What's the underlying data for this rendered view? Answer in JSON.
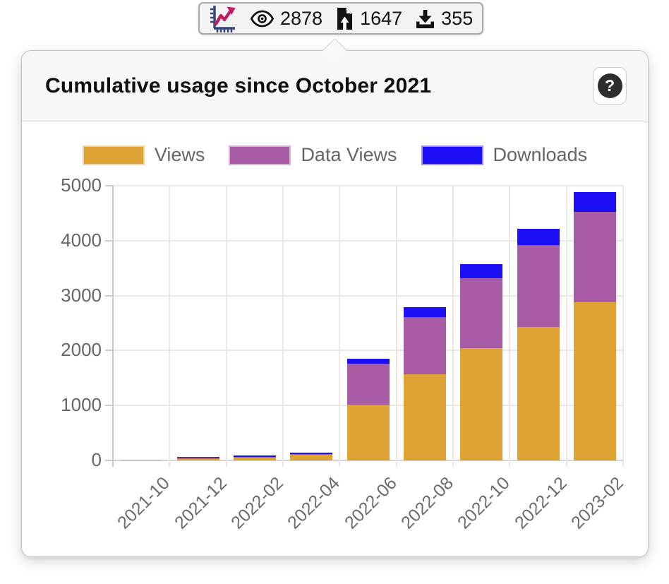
{
  "toolbar": {
    "metrics": [
      {
        "name": "views",
        "icon": "eye-icon",
        "value": "2878"
      },
      {
        "name": "data-views",
        "icon": "file-upload-icon",
        "value": "1647"
      },
      {
        "name": "downloads",
        "icon": "download-icon",
        "value": "355"
      }
    ]
  },
  "popup": {
    "title": "Cumulative usage since October 2021",
    "help_label": "?"
  },
  "chart_data": {
    "type": "bar",
    "stacked": true,
    "title": "Cumulative usage since October 2021",
    "categories": [
      "2021-10",
      "2021-12",
      "2022-02",
      "2022-04",
      "2022-06",
      "2022-08",
      "2022-10",
      "2022-12",
      "2023-02"
    ],
    "series": [
      {
        "name": "Views",
        "color": "#DFA335",
        "values": [
          18,
          30,
          50,
          98,
          1010,
          1565,
          2040,
          2425,
          2878
        ]
      },
      {
        "name": "Data Views",
        "color": "#A85CA6",
        "values": [
          0,
          6,
          8,
          18,
          745,
          1050,
          1280,
          1500,
          1647
        ]
      },
      {
        "name": "Downloads",
        "color": "#1C0EF5",
        "values": [
          0,
          5,
          7,
          14,
          100,
          180,
          255,
          295,
          355
        ]
      }
    ],
    "ylabel": "",
    "xlabel": "",
    "ylim": [
      0,
      5000
    ],
    "y_ticks": [
      0,
      1000,
      2000,
      3000,
      4000,
      5000
    ],
    "grid": true,
    "legend_position": "top"
  },
  "colors": {
    "views": "#DFA335",
    "data_views": "#A85CA6",
    "downloads": "#1C0EF5",
    "grid": "#e8e8e8",
    "axis": "#c9c9c9",
    "label_gray": "#666666"
  }
}
